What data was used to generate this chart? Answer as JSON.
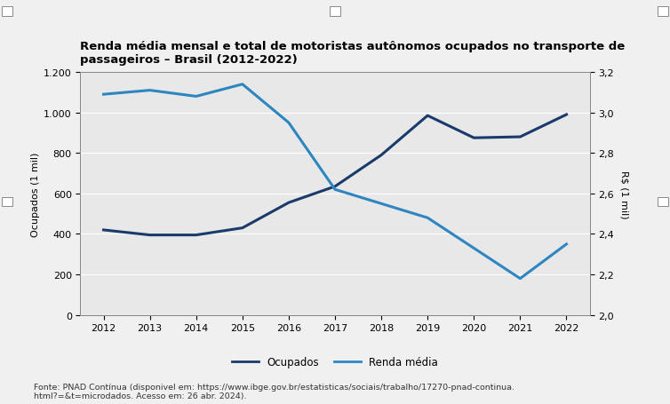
{
  "years": [
    2012,
    2013,
    2014,
    2015,
    2016,
    2017,
    2018,
    2019,
    2020,
    2021,
    2022
  ],
  "ocupados": [
    420,
    395,
    395,
    430,
    555,
    635,
    790,
    985,
    875,
    880,
    990
  ],
  "renda_media": [
    3.09,
    3.11,
    3.08,
    3.14,
    2.95,
    2.62,
    2.55,
    2.48,
    2.33,
    2.18,
    2.35
  ],
  "title": "Renda média mensal e total de motoristas autônomos ocupados no transporte de\npassageiros – Brasil (2012-2022)",
  "ylabel_left": "Ocupados (1 mil)",
  "ylabel_right": "R$ (1 mil)",
  "ylim_left": [
    0,
    1200
  ],
  "ylim_right": [
    2.0,
    3.2
  ],
  "yticks_left": [
    0,
    200,
    400,
    600,
    800,
    1000,
    1200
  ],
  "ytick_labels_left": [
    "0",
    "200",
    "400",
    "600",
    "800",
    "1.000",
    "1.200"
  ],
  "yticks_right": [
    2.0,
    2.2,
    2.4,
    2.6,
    2.8,
    3.0,
    3.2
  ],
  "ytick_labels_right": [
    "2,0",
    "2,2",
    "2,4",
    "2,6",
    "2,8",
    "3,0",
    "3,2"
  ],
  "color_ocupados": "#1a3a6b",
  "color_renda": "#2e86c1",
  "legend_ocupados": "Ocupados",
  "legend_renda": "Renda média",
  "fonte": "Fonte: PNAD Contínua (disponivel em: https://www.ibge.gov.br/estatisticas/sociais/trabalho/17270-pnad-continua.\nhtml?=&t=microdados. Acesso em: 26 abr. 2024).",
  "background_color": "#f0f0f0",
  "plot_bg_color": "#e8e8e8",
  "grid_color": "#ffffff",
  "border_color": "#888888"
}
